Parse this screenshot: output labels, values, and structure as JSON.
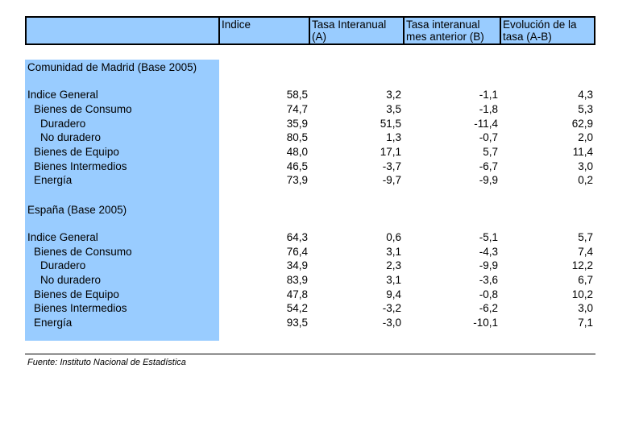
{
  "header": {
    "c0": "",
    "c1": "Indice",
    "c2": "Tasa Interanual (A)",
    "c3": "Tasa interanual mes anterior (B)",
    "c4": "Evolución de la tasa (A-B)"
  },
  "sections": [
    {
      "title": "Comunidad de Madrid (Base 2005)",
      "rows": [
        {
          "label": "Indice General",
          "indent": 0,
          "v": [
            "58,5",
            "3,2",
            "-1,1",
            "4,3"
          ]
        },
        {
          "label": "Bienes de Consumo",
          "indent": 1,
          "v": [
            "74,7",
            "3,5",
            "-1,8",
            "5,3"
          ]
        },
        {
          "label": "Duradero",
          "indent": 2,
          "v": [
            "35,9",
            "51,5",
            "-11,4",
            "62,9"
          ]
        },
        {
          "label": "No duradero",
          "indent": 2,
          "v": [
            "80,5",
            "1,3",
            "-0,7",
            "2,0"
          ]
        },
        {
          "label": "Bienes de Equipo",
          "indent": 1,
          "v": [
            "48,0",
            "17,1",
            "5,7",
            "11,4"
          ]
        },
        {
          "label": "Bienes Intermedios",
          "indent": 1,
          "v": [
            "46,5",
            "-3,7",
            "-6,7",
            "3,0"
          ]
        },
        {
          "label": "Energía",
          "indent": 1,
          "v": [
            "73,9",
            "-9,7",
            "-9,9",
            "0,2"
          ]
        }
      ]
    },
    {
      "title": "España (Base 2005)",
      "rows": [
        {
          "label": "Indice General",
          "indent": 0,
          "v": [
            "64,3",
            "0,6",
            "-5,1",
            "5,7"
          ]
        },
        {
          "label": "Bienes de Consumo",
          "indent": 1,
          "v": [
            "76,4",
            "3,1",
            "-4,3",
            "7,4"
          ]
        },
        {
          "label": "Duradero",
          "indent": 2,
          "v": [
            "34,9",
            "2,3",
            "-9,9",
            "12,2"
          ]
        },
        {
          "label": "No duradero",
          "indent": 2,
          "v": [
            "83,9",
            "3,1",
            "-3,6",
            "6,7"
          ]
        },
        {
          "label": "Bienes de Equipo",
          "indent": 1,
          "v": [
            "47,8",
            "9,4",
            "-0,8",
            "10,2"
          ]
        },
        {
          "label": "Bienes Intermedios",
          "indent": 1,
          "v": [
            "54,2",
            "-3,2",
            "-6,2",
            "3,0"
          ]
        },
        {
          "label": "Energía",
          "indent": 1,
          "v": [
            "93,5",
            "-3,0",
            "-10,1",
            "7,1"
          ]
        }
      ]
    }
  ],
  "source": "Fuente: Instituto Nacional de Estadística"
}
